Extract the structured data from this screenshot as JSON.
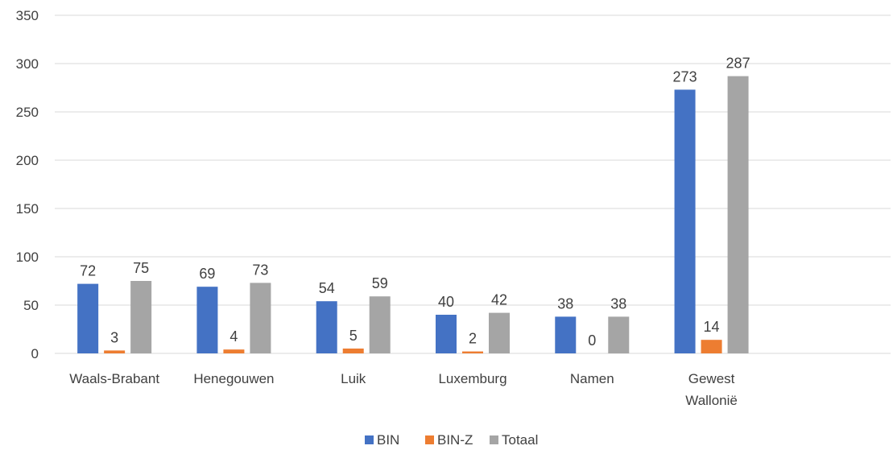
{
  "chart_data": {
    "type": "bar",
    "categories": [
      [
        "Waals-Brabant"
      ],
      [
        "Henegouwen"
      ],
      [
        "Luik"
      ],
      [
        "Luxemburg"
      ],
      [
        "Namen"
      ],
      [
        "Gewest",
        "Wallonië"
      ],
      [
        ""
      ]
    ],
    "series": [
      {
        "name": "BIN",
        "color": "#4472C4",
        "values": [
          72,
          69,
          54,
          40,
          38,
          273,
          null
        ]
      },
      {
        "name": "BIN-Z",
        "color": "#ED7D31",
        "values": [
          3,
          4,
          5,
          2,
          0,
          14,
          null
        ]
      },
      {
        "name": "Totaal",
        "color": "#A5A5A5",
        "values": [
          75,
          73,
          59,
          42,
          38,
          287,
          null
        ]
      }
    ],
    "ylim": [
      0,
      350
    ],
    "yticks": [
      0,
      50,
      100,
      150,
      200,
      250,
      300,
      350
    ],
    "grid": true,
    "legend": "bottom",
    "data_labels": true
  }
}
